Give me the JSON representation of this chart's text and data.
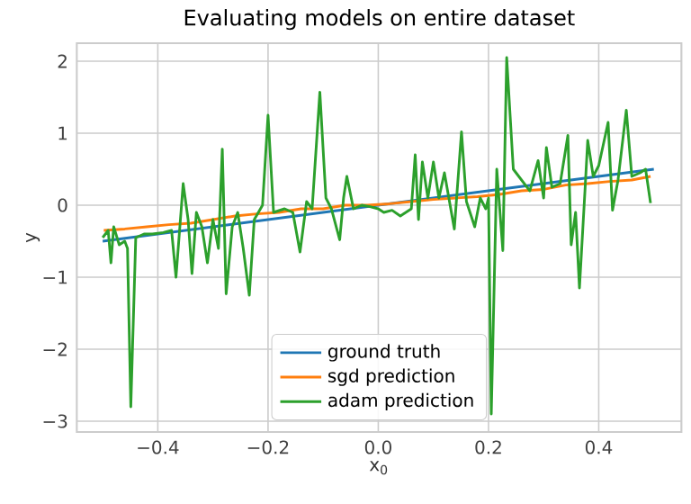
{
  "chart_data": {
    "type": "line",
    "title": "Evaluating models on entire dataset",
    "xlabel": "x$_{0}$",
    "ylabel": "y",
    "xlim": [
      -0.547,
      0.55
    ],
    "ylim": [
      -3.15,
      2.25
    ],
    "xticks": [
      {
        "value": -0.4,
        "label": "−0.4"
      },
      {
        "value": -0.2,
        "label": "−0.2"
      },
      {
        "value": 0.0,
        "label": "0.0"
      },
      {
        "value": 0.2,
        "label": "0.2"
      },
      {
        "value": 0.4,
        "label": "0.4"
      }
    ],
    "yticks": [
      {
        "value": -3,
        "label": "−3"
      },
      {
        "value": -2,
        "label": "−2"
      },
      {
        "value": -1,
        "label": "−1"
      },
      0,
      1,
      2
    ],
    "grid": true,
    "legend": "bottom",
    "line_style": "solid",
    "series": [
      {
        "name": "ground truth",
        "color": "#1f77b4",
        "x": [
          -0.5,
          0.5
        ],
        "values": [
          -0.5,
          0.5
        ]
      },
      {
        "name": "sgd prediction",
        "color": "#ff7f0e",
        "x": [
          -0.498,
          -0.46,
          -0.42,
          -0.38,
          -0.34,
          -0.3,
          -0.26,
          -0.22,
          -0.18,
          -0.14,
          -0.1,
          -0.06,
          -0.02,
          0.02,
          0.06,
          0.1,
          0.14,
          0.18,
          0.22,
          0.26,
          0.3,
          0.34,
          0.38,
          0.42,
          0.46,
          0.494
        ],
        "values": [
          -0.35,
          -0.33,
          -0.3,
          -0.27,
          -0.25,
          -0.2,
          -0.15,
          -0.12,
          -0.1,
          -0.05,
          -0.05,
          0.0,
          0.0,
          0.02,
          0.05,
          0.08,
          0.1,
          0.12,
          0.15,
          0.2,
          0.22,
          0.28,
          0.3,
          0.33,
          0.35,
          0.4
        ]
      },
      {
        "name": "adam prediction",
        "color": "#2ca02c",
        "x": [
          -0.5,
          -0.49,
          -0.485,
          -0.48,
          -0.47,
          -0.46,
          -0.455,
          -0.449,
          -0.44,
          -0.425,
          -0.41,
          -0.39,
          -0.375,
          -0.367,
          -0.36,
          -0.354,
          -0.345,
          -0.338,
          -0.33,
          -0.32,
          -0.31,
          -0.3,
          -0.29,
          -0.283,
          -0.276,
          -0.265,
          -0.255,
          -0.245,
          -0.234,
          -0.225,
          -0.21,
          -0.2,
          -0.19,
          -0.17,
          -0.155,
          -0.142,
          -0.13,
          -0.12,
          -0.106,
          -0.095,
          -0.085,
          -0.07,
          -0.063,
          -0.057,
          -0.045,
          -0.03,
          -0.015,
          0.0,
          0.01,
          0.025,
          0.04,
          0.06,
          0.067,
          0.073,
          0.08,
          0.09,
          0.1,
          0.11,
          0.12,
          0.138,
          0.151,
          0.16,
          0.175,
          0.185,
          0.195,
          0.2,
          0.205,
          0.215,
          0.226,
          0.233,
          0.245,
          0.26,
          0.275,
          0.29,
          0.3,
          0.305,
          0.315,
          0.33,
          0.344,
          0.35,
          0.358,
          0.365,
          0.375,
          0.38,
          0.39,
          0.4,
          0.417,
          0.425,
          0.435,
          0.45,
          0.46,
          0.475,
          0.485,
          0.494
        ],
        "values": [
          -0.45,
          -0.35,
          -0.8,
          -0.3,
          -0.55,
          -0.5,
          -0.6,
          -2.8,
          -0.45,
          -0.4,
          -0.4,
          -0.38,
          -0.35,
          -1.0,
          -0.3,
          0.3,
          -0.2,
          -0.95,
          -0.1,
          -0.3,
          -0.8,
          -0.2,
          -0.6,
          0.78,
          -1.23,
          -0.3,
          -0.1,
          -0.6,
          -1.25,
          -0.2,
          0.0,
          1.25,
          -0.1,
          -0.05,
          -0.1,
          -0.65,
          0.05,
          -0.05,
          1.57,
          0.1,
          -0.05,
          -0.48,
          0.1,
          0.4,
          -0.05,
          0.0,
          -0.02,
          -0.05,
          -0.1,
          -0.07,
          -0.15,
          -0.05,
          0.7,
          -0.2,
          0.6,
          0.1,
          0.6,
          0.1,
          0.45,
          -0.33,
          1.02,
          0.05,
          -0.3,
          0.1,
          -0.05,
          0.1,
          -2.9,
          0.5,
          -0.63,
          2.05,
          0.5,
          0.35,
          0.2,
          0.62,
          0.1,
          0.8,
          0.25,
          0.3,
          0.97,
          -0.55,
          -0.1,
          -1.15,
          0.2,
          0.9,
          0.4,
          0.55,
          1.15,
          -0.07,
          0.35,
          1.32,
          0.4,
          0.45,
          0.5,
          0.03
        ]
      }
    ]
  }
}
